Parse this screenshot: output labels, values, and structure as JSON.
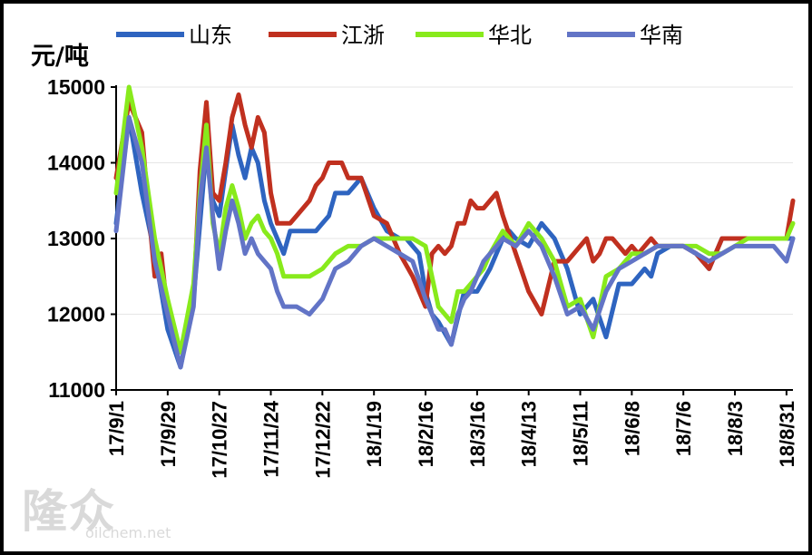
{
  "chart_data": {
    "type": "line",
    "title": "",
    "ylabel": "元/吨",
    "xlabel": "",
    "ylim": [
      11000,
      15000
    ],
    "yticks": [
      11000,
      12000,
      13000,
      14000,
      15000
    ],
    "x_range": [
      0,
      105
    ],
    "tick_positions": [
      0,
      8,
      16,
      24,
      32,
      40,
      48,
      56,
      64,
      72,
      80,
      88,
      96,
      104
    ],
    "tick_labels": [
      "17/9/1",
      "17/9/29",
      "17/10/27",
      "17/11/24",
      "17/12/22",
      "18/1/19",
      "18/2/16",
      "18/3/16",
      "18/4/13",
      "18/5/11",
      "18/6/8",
      "18/7/6",
      "18/8/3",
      "18/8/31"
    ],
    "legend_position": "top",
    "series": [
      {
        "name": "山东",
        "color": "#2e64c0",
        "x": [
          0,
          2,
          4,
          6,
          8,
          10,
          12,
          14,
          15,
          16,
          17,
          18,
          19,
          20,
          21,
          22,
          23,
          24,
          25,
          26,
          27,
          28,
          29,
          30,
          31,
          32,
          33,
          34,
          36,
          38,
          40,
          42,
          44,
          45,
          46,
          47,
          48,
          49,
          50,
          52,
          54,
          56,
          58,
          59,
          60,
          61,
          62,
          64,
          66,
          68,
          70,
          72,
          74,
          76,
          78,
          80,
          81,
          82,
          83,
          84,
          86,
          87,
          88,
          90,
          92,
          94,
          96,
          98,
          100,
          102,
          103,
          104,
          105
        ],
        "values": [
          13200,
          14600,
          13600,
          12800,
          11800,
          11300,
          12200,
          14200,
          13500,
          13300,
          13900,
          14500,
          14100,
          13800,
          14200,
          14000,
          13500,
          13200,
          13000,
          12800,
          13100,
          13100,
          13100,
          13100,
          13100,
          13200,
          13300,
          13600,
          13600,
          13800,
          13400,
          13100,
          13000,
          13000,
          12900,
          12800,
          12300,
          12000,
          11900,
          11600,
          12300,
          12300,
          12600,
          12800,
          13000,
          13100,
          13000,
          12900,
          13200,
          13000,
          12600,
          12000,
          12200,
          11700,
          12400,
          12400,
          12500,
          12600,
          12500,
          12800,
          12900,
          12900,
          12900,
          12800,
          12600,
          13000,
          13000,
          13000,
          13000,
          13000,
          13000,
          13000,
          13000
        ]
      },
      {
        "name": "江浙",
        "color": "#c0301f",
        "x": [
          0,
          2,
          4,
          5,
          6,
          7,
          8,
          10,
          12,
          13,
          14,
          15,
          16,
          17,
          18,
          19,
          20,
          21,
          22,
          23,
          24,
          25,
          26,
          27,
          28,
          29,
          30,
          31,
          32,
          33,
          34,
          35,
          36,
          38,
          40,
          42,
          44,
          46,
          48,
          49,
          50,
          51,
          52,
          53,
          54,
          55,
          56,
          57,
          58,
          59,
          60,
          62,
          64,
          66,
          68,
          70,
          72,
          73,
          74,
          75,
          76,
          77,
          78,
          79,
          80,
          81,
          82,
          83,
          84,
          86,
          87,
          88,
          90,
          92,
          94,
          96,
          98,
          100,
          102,
          104,
          105
        ],
        "values": [
          13800,
          14800,
          14400,
          13400,
          12500,
          12800,
          12000,
          11500,
          12200,
          13900,
          14800,
          13600,
          13500,
          14000,
          14600,
          14900,
          14500,
          14200,
          14600,
          14400,
          13600,
          13200,
          13200,
          13200,
          13300,
          13400,
          13500,
          13700,
          13800,
          14000,
          14000,
          14000,
          13800,
          13800,
          13300,
          13200,
          12800,
          12500,
          12100,
          12800,
          12900,
          12800,
          12900,
          13200,
          13200,
          13500,
          13400,
          13400,
          13500,
          13600,
          13300,
          12800,
          12300,
          12000,
          12700,
          12700,
          12900,
          13000,
          12700,
          12800,
          13000,
          13000,
          12900,
          12800,
          12900,
          12800,
          12900,
          13000,
          12900,
          12900,
          12900,
          12900,
          12800,
          12600,
          13000,
          13000,
          13000,
          13000,
          13000,
          13000,
          13500
        ]
      },
      {
        "name": "华北",
        "color": "#88ea1c",
        "x": [
          0,
          2,
          4,
          6,
          8,
          10,
          12,
          13,
          14,
          15,
          16,
          17,
          18,
          19,
          20,
          21,
          22,
          23,
          24,
          25,
          26,
          28,
          30,
          32,
          34,
          36,
          38,
          40,
          42,
          44,
          46,
          48,
          49,
          50,
          51,
          52,
          53,
          54,
          55,
          56,
          57,
          58,
          60,
          62,
          64,
          66,
          68,
          70,
          72,
          74,
          76,
          78,
          80,
          82,
          84,
          86,
          88,
          90,
          92,
          94,
          96,
          98,
          100,
          102,
          104,
          105
        ],
        "values": [
          13600,
          15000,
          14200,
          13000,
          12200,
          11500,
          12400,
          13600,
          14500,
          13200,
          12800,
          13400,
          13700,
          13400,
          13000,
          13200,
          13300,
          13100,
          13000,
          12800,
          12500,
          12500,
          12500,
          12600,
          12800,
          12900,
          12900,
          13000,
          13000,
          13000,
          13000,
          12900,
          12500,
          12100,
          12000,
          11900,
          12300,
          12300,
          12400,
          12500,
          12600,
          12800,
          13100,
          12900,
          13200,
          13000,
          12700,
          12100,
          12200,
          11700,
          12500,
          12600,
          12800,
          12800,
          12900,
          12900,
          12900,
          12900,
          12800,
          12800,
          12900,
          13000,
          13000,
          13000,
          13000,
          13200
        ]
      },
      {
        "name": "华南",
        "color": "#6274c6",
        "x": [
          0,
          2,
          4,
          6,
          8,
          10,
          12,
          13,
          14,
          15,
          16,
          17,
          18,
          19,
          20,
          21,
          22,
          23,
          24,
          25,
          26,
          28,
          30,
          32,
          34,
          36,
          38,
          40,
          42,
          44,
          46,
          48,
          50,
          51,
          52,
          53,
          54,
          55,
          56,
          57,
          58,
          60,
          62,
          64,
          66,
          68,
          70,
          72,
          74,
          76,
          78,
          80,
          82,
          84,
          86,
          88,
          90,
          92,
          94,
          96,
          98,
          100,
          102,
          104,
          105
        ],
        "values": [
          13100,
          14600,
          14000,
          12700,
          12000,
          11300,
          12100,
          13500,
          14200,
          13300,
          12600,
          13100,
          13500,
          13200,
          12800,
          13000,
          12800,
          12700,
          12600,
          12300,
          12100,
          12100,
          12000,
          12200,
          12600,
          12700,
          12900,
          13000,
          12900,
          12800,
          12700,
          12200,
          11800,
          11800,
          11600,
          12000,
          12200,
          12300,
          12500,
          12700,
          12800,
          13000,
          12900,
          13100,
          12900,
          12500,
          12000,
          12100,
          11800,
          12300,
          12600,
          12700,
          12800,
          12900,
          12900,
          12900,
          12800,
          12700,
          12800,
          12900,
          12900,
          12900,
          12900,
          12700,
          13000
        ]
      }
    ]
  },
  "watermark": {
    "logo_text": "隆众",
    "url_text": "oilchem.net"
  }
}
